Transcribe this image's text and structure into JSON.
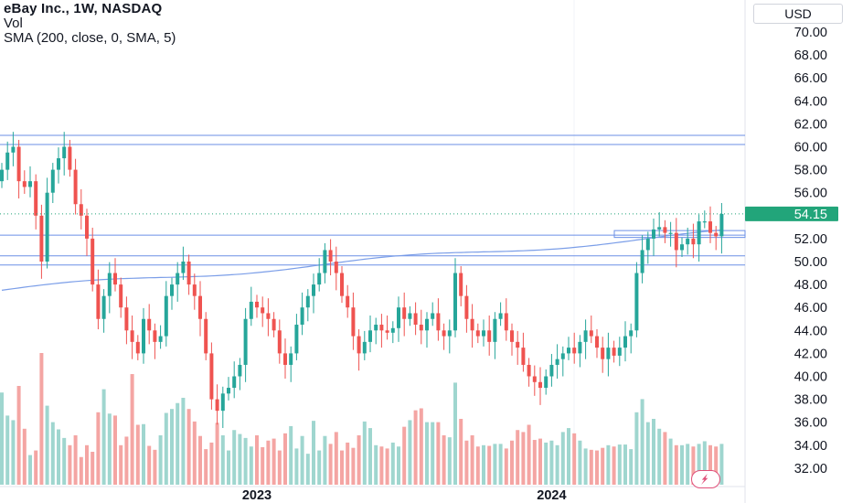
{
  "legend": {
    "title": "eBay Inc., 1W, NASDAQ",
    "vol": "Vol",
    "sma": "SMA (200, close, 0, SMA, 5)"
  },
  "currency": "USD",
  "price_badge": "54.15",
  "colors": {
    "up": "#26a69a",
    "down": "#ef5350",
    "vol_up": "#9fd6cf",
    "vol_down": "#f4a5a3",
    "sma": "#7b9ee8",
    "hline": "#6b8fe6",
    "badge": "#22a57a"
  },
  "chart_data": {
    "type": "candlestick",
    "title": "eBay Inc., 1W, NASDAQ",
    "y_axis": {
      "min": 30,
      "max": 72,
      "ticks": [
        "70.00",
        "68.00",
        "66.00",
        "64.00",
        "62.00",
        "60.00",
        "58.00",
        "56.00",
        "54.00",
        "52.00",
        "50.00",
        "48.00",
        "46.00",
        "44.00",
        "42.00",
        "40.00",
        "38.00",
        "36.00",
        "34.00",
        "32.00"
      ]
    },
    "x_axis_labels": [
      {
        "label": "2023",
        "week": 45
      },
      {
        "label": "2024",
        "week": 97
      }
    ],
    "last_price": 54.15,
    "horizontal_levels": [
      61.0,
      60.2,
      52.3,
      50.5,
      49.7
    ],
    "closes": [
      58,
      59.5,
      60,
      57,
      56.5,
      57,
      54,
      50,
      56,
      58,
      59,
      60,
      58,
      55,
      54,
      52,
      48,
      45,
      47,
      49,
      48,
      46,
      44,
      43,
      42,
      45,
      44,
      43,
      43.5,
      47,
      48,
      49,
      50,
      48,
      47,
      45,
      42,
      38,
      37,
      38.5,
      39,
      40,
      41,
      45,
      46.5,
      46,
      45.5,
      45,
      44,
      42,
      41,
      42,
      44.5,
      46,
      47,
      48,
      49,
      51,
      50,
      49,
      47,
      46,
      43.5,
      42,
      43,
      44,
      44.5,
      44,
      43.8,
      44.2,
      46,
      45,
      45.5,
      44.5,
      44,
      45,
      45.5,
      44,
      43.5,
      44,
      49,
      47,
      45,
      44,
      43.5,
      44,
      43,
      45,
      45.5,
      44,
      43,
      42.5,
      41,
      40,
      39.5,
      39,
      40,
      41,
      41.5,
      42,
      42.5,
      42,
      43,
      44,
      43.5,
      42.5,
      41.5,
      42.5,
      41.8,
      42.5,
      43.5,
      44,
      49,
      51,
      52,
      52.8,
      53,
      52.5,
      52.5,
      51,
      51.5,
      52,
      51.5,
      53.5,
      53.5,
      52.5,
      52.2,
      54.15
    ],
    "volumes": [
      1.4,
      1.05,
      0.98,
      1.5,
      0.85,
      0.45,
      0.52,
      2.0,
      1.2,
      0.95,
      0.84,
      0.71,
      0.6,
      0.75,
      0.42,
      0.6,
      0.5,
      1.1,
      1.45,
      1.08,
      1.05,
      0.6,
      0.73,
      1.68,
      0.91,
      0.92,
      0.59,
      0.53,
      0.75,
      1.09,
      1.15,
      1.24,
      1.32,
      1.15,
      0.96,
      0.74,
      0.54,
      0.64,
      0.94,
      0.75,
      0.52,
      0.83,
      0.77,
      0.71,
      0.58,
      0.75,
      0.57,
      0.67,
      0.7,
      0.52,
      0.78,
      0.89,
      0.55,
      0.74,
      0.47,
      0.97,
      0.52,
      0.74,
      0.62,
      0.8,
      0.52,
      0.64,
      0.56,
      0.75,
      0.96,
      0.86,
      0.6,
      0.58,
      0.55,
      0.64,
      0.58,
      0.88,
      0.98,
      1.13,
      1.16,
      0.95,
      0.95,
      0.95,
      0.75,
      0.72,
      1.55,
      1.0,
      0.67,
      0.75,
      0.58,
      0.6,
      0.59,
      0.62,
      0.62,
      0.55,
      0.67,
      0.83,
      0.8,
      0.91,
      0.68,
      0.7,
      0.64,
      0.67,
      0.6,
      0.8,
      0.86,
      0.78,
      0.67,
      0.55,
      0.53,
      0.52,
      0.56,
      0.6,
      0.58,
      0.61,
      0.61,
      0.54,
      1.1,
      1.3,
      0.95,
      1.0,
      0.85,
      0.8,
      0.7,
      0.6,
      0.6,
      0.62,
      0.58,
      0.62,
      0.66,
      0.6,
      0.58,
      0.62
    ]
  }
}
